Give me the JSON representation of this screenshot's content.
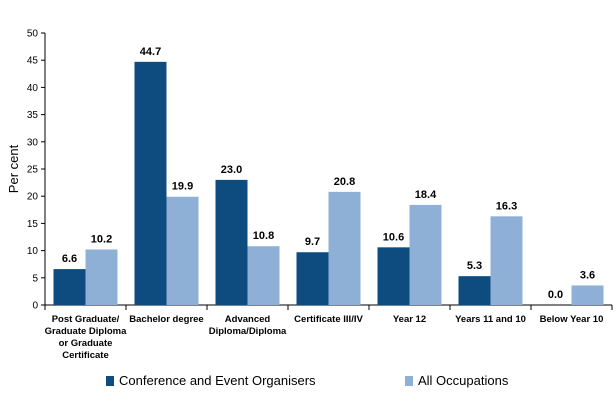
{
  "chart_data": {
    "type": "bar",
    "categories": [
      [
        "Post Graduate/",
        "Graduate Diploma",
        "or Graduate",
        "Certificate"
      ],
      [
        "Bachelor degree"
      ],
      [
        "Advanced",
        "Diploma/Diploma"
      ],
      [
        "Certificate III/IV"
      ],
      [
        "Year 12"
      ],
      [
        "Years 11 and 10"
      ],
      [
        "Below Year 10"
      ]
    ],
    "series": [
      {
        "name": "Conference and Event Organisers",
        "color": "#0e4c80",
        "values": [
          6.6,
          44.7,
          23.0,
          9.7,
          10.6,
          5.3,
          0.0
        ]
      },
      {
        "name": "All Occupations",
        "color": "#8eb0d6",
        "values": [
          10.2,
          19.9,
          10.8,
          20.8,
          18.4,
          16.3,
          3.6
        ]
      }
    ],
    "ylabel": "Per cent",
    "xlabel": "",
    "ylim": [
      0,
      50
    ],
    "yticks": [
      0,
      5,
      10,
      15,
      20,
      25,
      30,
      35,
      40,
      45,
      50
    ],
    "grid": false,
    "legend_position": "bottom"
  }
}
